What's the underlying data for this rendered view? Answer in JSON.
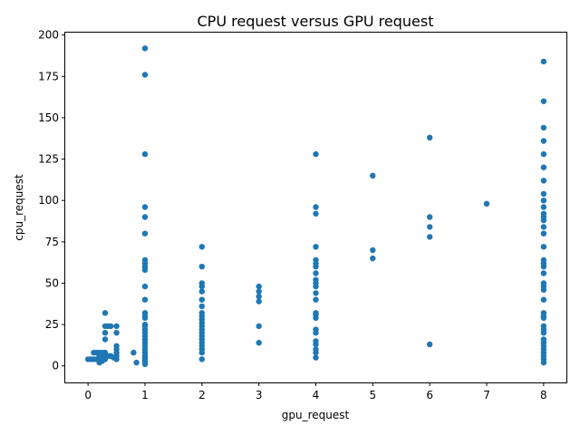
{
  "chart_data": {
    "type": "scatter",
    "title": "CPU request versus GPU request",
    "xlabel": "gpu_request",
    "ylabel": "cpu_request",
    "xlim": [
      -0.4,
      8.4
    ],
    "ylim": [
      -10,
      202
    ],
    "xticks": [
      0,
      1,
      2,
      3,
      4,
      5,
      6,
      7,
      8
    ],
    "yticks": [
      0,
      25,
      50,
      75,
      100,
      125,
      150,
      175,
      200
    ],
    "grid": false,
    "marker_color": "#1f77b4",
    "series": [
      {
        "points": [
          [
            0,
            4
          ],
          [
            0.05,
            4
          ],
          [
            0.1,
            4
          ],
          [
            0.1,
            8
          ],
          [
            0.15,
            4
          ],
          [
            0.15,
            8
          ],
          [
            0.2,
            2
          ],
          [
            0.2,
            4
          ],
          [
            0.2,
            6
          ],
          [
            0.2,
            8
          ],
          [
            0.25,
            3
          ],
          [
            0.25,
            4
          ],
          [
            0.25,
            8
          ],
          [
            0.3,
            4
          ],
          [
            0.3,
            6
          ],
          [
            0.3,
            8
          ],
          [
            0.3,
            16
          ],
          [
            0.3,
            20
          ],
          [
            0.3,
            24
          ],
          [
            0.3,
            32
          ],
          [
            0.35,
            6
          ],
          [
            0.35,
            24
          ],
          [
            0.4,
            6
          ],
          [
            0.4,
            24
          ],
          [
            0.45,
            5
          ],
          [
            0.5,
            4
          ],
          [
            0.5,
            6
          ],
          [
            0.5,
            8
          ],
          [
            0.5,
            10
          ],
          [
            0.5,
            12
          ],
          [
            0.5,
            20
          ],
          [
            0.5,
            24
          ],
          [
            0.8,
            8
          ],
          [
            0.85,
            2
          ],
          [
            1,
            1
          ],
          [
            1,
            2
          ],
          [
            1,
            3
          ],
          [
            1,
            4
          ],
          [
            1,
            5
          ],
          [
            1,
            6
          ],
          [
            1,
            8
          ],
          [
            1,
            10
          ],
          [
            1,
            12
          ],
          [
            1,
            14
          ],
          [
            1,
            16
          ],
          [
            1,
            18
          ],
          [
            1,
            20
          ],
          [
            1,
            22
          ],
          [
            1,
            24
          ],
          [
            1,
            25
          ],
          [
            1,
            29
          ],
          [
            1,
            30
          ],
          [
            1,
            32
          ],
          [
            1,
            40
          ],
          [
            1,
            48
          ],
          [
            1,
            58
          ],
          [
            1,
            60
          ],
          [
            1,
            62
          ],
          [
            1,
            64
          ],
          [
            1,
            80
          ],
          [
            1,
            90
          ],
          [
            1,
            96
          ],
          [
            1,
            128
          ],
          [
            1,
            176
          ],
          [
            1,
            192
          ],
          [
            2,
            4
          ],
          [
            2,
            8
          ],
          [
            2,
            10
          ],
          [
            2,
            12
          ],
          [
            2,
            14
          ],
          [
            2,
            16
          ],
          [
            2,
            18
          ],
          [
            2,
            20
          ],
          [
            2,
            22
          ],
          [
            2,
            24
          ],
          [
            2,
            26
          ],
          [
            2,
            28
          ],
          [
            2,
            30
          ],
          [
            2,
            32
          ],
          [
            2,
            36
          ],
          [
            2,
            40
          ],
          [
            2,
            45
          ],
          [
            2,
            48
          ],
          [
            2,
            50
          ],
          [
            2,
            60
          ],
          [
            2,
            72
          ],
          [
            3,
            14
          ],
          [
            3,
            24
          ],
          [
            3,
            39
          ],
          [
            3,
            42
          ],
          [
            3,
            45
          ],
          [
            3,
            48
          ],
          [
            4,
            5
          ],
          [
            4,
            8
          ],
          [
            4,
            10
          ],
          [
            4,
            13
          ],
          [
            4,
            15
          ],
          [
            4,
            20
          ],
          [
            4,
            22
          ],
          [
            4,
            29
          ],
          [
            4,
            31
          ],
          [
            4,
            32
          ],
          [
            4,
            40
          ],
          [
            4,
            44
          ],
          [
            4,
            48
          ],
          [
            4,
            50
          ],
          [
            4,
            52
          ],
          [
            4,
            56
          ],
          [
            4,
            60
          ],
          [
            4,
            62
          ],
          [
            4,
            64
          ],
          [
            4,
            72
          ],
          [
            4,
            92
          ],
          [
            4,
            96
          ],
          [
            4,
            128
          ],
          [
            5,
            65
          ],
          [
            5,
            70
          ],
          [
            5,
            115
          ],
          [
            6,
            13
          ],
          [
            6,
            78
          ],
          [
            6,
            84
          ],
          [
            6,
            90
          ],
          [
            6,
            138
          ],
          [
            7,
            98
          ],
          [
            8,
            2
          ],
          [
            8,
            4
          ],
          [
            8,
            6
          ],
          [
            8,
            8
          ],
          [
            8,
            10
          ],
          [
            8,
            12
          ],
          [
            8,
            14
          ],
          [
            8,
            16
          ],
          [
            8,
            20
          ],
          [
            8,
            22
          ],
          [
            8,
            24
          ],
          [
            8,
            29
          ],
          [
            8,
            30
          ],
          [
            8,
            32
          ],
          [
            8,
            40
          ],
          [
            8,
            46
          ],
          [
            8,
            48
          ],
          [
            8,
            50
          ],
          [
            8,
            56
          ],
          [
            8,
            60
          ],
          [
            8,
            62
          ],
          [
            8,
            64
          ],
          [
            8,
            72
          ],
          [
            8,
            80
          ],
          [
            8,
            84
          ],
          [
            8,
            88
          ],
          [
            8,
            90
          ],
          [
            8,
            92
          ],
          [
            8,
            96
          ],
          [
            8,
            100
          ],
          [
            8,
            104
          ],
          [
            8,
            112
          ],
          [
            8,
            120
          ],
          [
            8,
            128
          ],
          [
            8,
            136
          ],
          [
            8,
            144
          ],
          [
            8,
            160
          ],
          [
            8,
            184
          ]
        ]
      }
    ]
  }
}
